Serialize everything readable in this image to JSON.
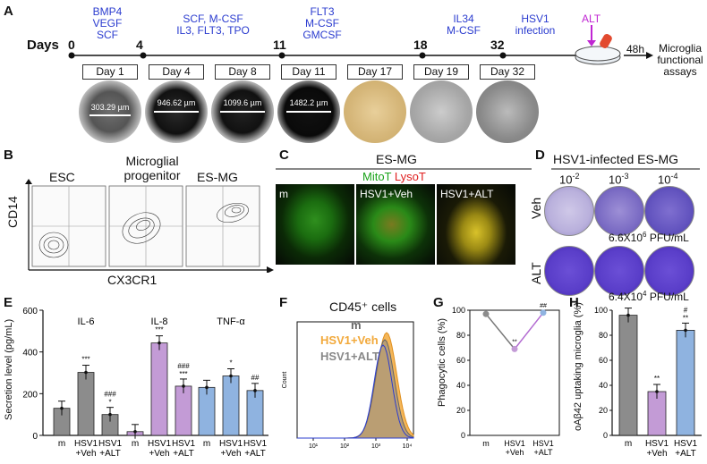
{
  "panelA": {
    "label": "A",
    "days_label": "Days",
    "timepoints": [
      {
        "day": "0",
        "factors": [
          "BMP4",
          "VEGF",
          "SCF"
        ]
      },
      {
        "day": "4",
        "factors": [
          "SCF, M-CSF",
          "IL3, FLT3, TPO"
        ]
      },
      {
        "day": "11",
        "factors": [
          "FLT3",
          "M-CSF",
          "GMCSF"
        ]
      },
      {
        "day": "18",
        "factors": [
          "IL34",
          "M-CSF"
        ]
      },
      {
        "day": "32",
        "factors": [
          "HSV1",
          "infection"
        ]
      }
    ],
    "alt_label": "ALT",
    "duration": "48h",
    "outcome": [
      "Microglia",
      "functional",
      "assays"
    ],
    "day_boxes": [
      "Day 1",
      "Day 4",
      "Day 8",
      "Day 11",
      "Day 17",
      "Day 19",
      "Day 32"
    ],
    "scales": [
      "303.29 µm",
      "946.62 µm",
      "1099.6 µm",
      "1482.2 µm"
    ]
  },
  "panelB": {
    "label": "B",
    "titles": [
      "ESC",
      "Microglial progenitor",
      "ES-MG"
    ],
    "ylabel": "CD14",
    "xlabel": "CX3CR1"
  },
  "panelC": {
    "label": "C",
    "title": "ES-MG",
    "stain1": "MitoT",
    "stain2": "LysoT",
    "images": [
      "m",
      "HSV1+Veh",
      "HSV1+ALT"
    ]
  },
  "panelD": {
    "label": "D",
    "title": "HSV1-infected ES-MG",
    "dilutions": [
      "10",
      "10",
      "10"
    ],
    "exponents": [
      "-2",
      "-3",
      "-4"
    ],
    "rows": [
      {
        "name": "Veh",
        "titer": "6.6X10",
        "exp": "6",
        "unit": " PFU/mL"
      },
      {
        "name": "ALT",
        "titer": "6.4X10",
        "exp": "4",
        "unit": " PFU/mL"
      }
    ]
  },
  "panelE": {
    "label": "E",
    "ylabel": "Secretion level (pg/mL)",
    "groups": [
      "IL-6",
      "IL-8",
      "TNF-α"
    ],
    "xlabels": [
      "m",
      "HSV1\n+Veh",
      "HSV1\n+ALT"
    ],
    "yticks": [
      "0",
      "200",
      "400",
      "600"
    ],
    "sig": [
      [
        "",
        "***",
        "###\n*"
      ],
      [
        "",
        "***",
        "###\n***"
      ],
      [
        "",
        "*",
        "##"
      ]
    ]
  },
  "panelF": {
    "label": "F",
    "title": "CD45⁺ cells",
    "legend": [
      "m",
      "HSV1+Veh",
      "HSV1+ALT"
    ],
    "ylabel": "Count",
    "xticks": [
      "10¹",
      "10²",
      "10³",
      "10⁴"
    ]
  },
  "panelG": {
    "label": "G",
    "ylabel": "Phagocytic cells (%)",
    "yticks": [
      "0",
      "20",
      "40",
      "60",
      "80",
      "100"
    ],
    "xlabels": [
      "m",
      "HSV1\n+Veh",
      "HSV1\n+ALT"
    ],
    "sig": [
      "",
      "**",
      "##"
    ]
  },
  "panelH": {
    "label": "H",
    "ylabel": "oAβ42 uptaking microglia (%)",
    "yticks": [
      "0",
      "20",
      "40",
      "60",
      "80",
      "100"
    ],
    "xlabels": [
      "m",
      "HSV1\n+Veh",
      "HSV1\n+ALT"
    ],
    "sig": [
      "",
      "**",
      "#\n**"
    ]
  },
  "chart_data": [
    {
      "type": "bar",
      "panel": "E",
      "title": "",
      "ylabel": "Secretion level (pg/mL)",
      "ylim": [
        0,
        600
      ],
      "categories": [
        "m",
        "HSV1+Veh",
        "HSV1+ALT"
      ],
      "series": [
        {
          "name": "IL-6",
          "values": [
            130,
            302,
            100
          ],
          "color": "#8c8c8c"
        },
        {
          "name": "IL-8",
          "values": [
            18,
            443,
            236
          ],
          "color": "#c39bd6"
        },
        {
          "name": "TNF-α",
          "values": [
            230,
            285,
            215
          ],
          "color": "#8fb3e0"
        }
      ]
    },
    {
      "type": "line",
      "panel": "G",
      "ylabel": "Phagocytic cells (%)",
      "ylim": [
        0,
        100
      ],
      "categories": [
        "m",
        "HSV1+Veh",
        "HSV1+ALT"
      ],
      "values": [
        97,
        69,
        98
      ]
    },
    {
      "type": "bar",
      "panel": "H",
      "ylabel": "oAβ42 uptaking microglia (%)",
      "ylim": [
        0,
        100
      ],
      "categories": [
        "m",
        "HSV1+Veh",
        "HSV1+ALT"
      ],
      "values": [
        96,
        35,
        84
      ],
      "colors": [
        "#8c8c8c",
        "#c39bd6",
        "#8fb3e0"
      ]
    }
  ],
  "colors": {
    "blue_text": "#2b3ccf",
    "gray": "#8c8c8c",
    "purple": "#c39bd6",
    "lightblue": "#8fb3e0",
    "orange": "#f2a93b",
    "magenta": "#c026d3"
  }
}
